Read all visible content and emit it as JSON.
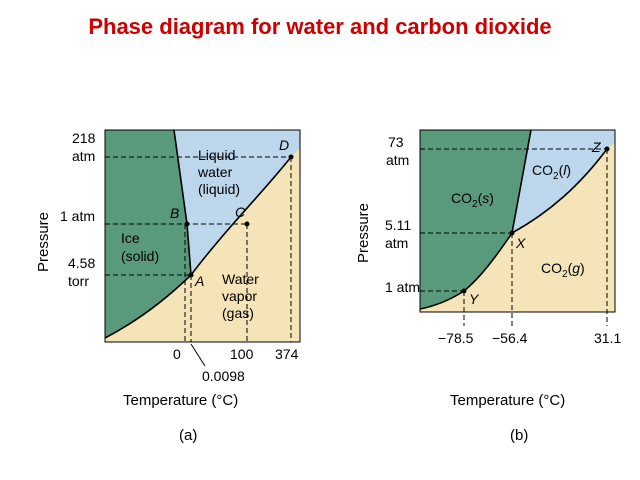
{
  "title": "Phase diagram for water and carbon dioxide",
  "colors": {
    "title": "#cc0000",
    "solid": "#5a9a7c",
    "liquid": "#bcd7ec",
    "gas": "#f5e4b8"
  },
  "water": {
    "caption": "(a)",
    "xlabel": "Temperature (°C)",
    "ylabel": "Pressure",
    "y_ticks": [
      {
        "l1": "218",
        "l2": "atm"
      },
      {
        "l1": "1 atm",
        "l2": ""
      },
      {
        "l1": "4.58",
        "l2": "torr"
      }
    ],
    "x_ticks": [
      "0",
      "100",
      "374"
    ],
    "x_tick_extra": "0.0098",
    "regions": {
      "liquid": [
        "Liquid",
        "water",
        "(liquid)"
      ],
      "solid": [
        "Ice",
        "(solid)"
      ],
      "gas": [
        "Water",
        "vapor",
        "(gas)"
      ]
    },
    "points": [
      "A",
      "B",
      "C",
      "D"
    ]
  },
  "co2": {
    "caption": "(b)",
    "xlabel": "Temperature (°C)",
    "ylabel": "Pressure",
    "y_ticks": [
      {
        "l1": "73",
        "l2": "atm"
      },
      {
        "l1": "5.11",
        "l2": "atm"
      },
      {
        "l1": "1 atm",
        "l2": ""
      }
    ],
    "x_ticks": [
      "−78.5",
      "−56.4",
      "31.1"
    ],
    "regions": {
      "liquid": "CO2(l)",
      "solid": "CO2(s)",
      "gas": "CO2(g)"
    },
    "points": [
      "X",
      "Y",
      "Z"
    ]
  }
}
